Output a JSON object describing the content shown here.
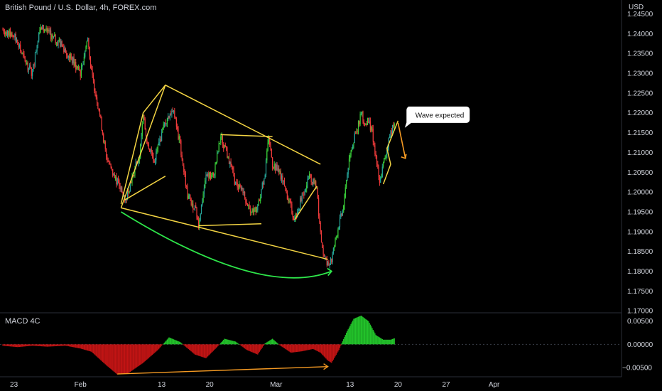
{
  "header": {
    "title": "British Pound / U.S. Dollar, 4h, FOREX.com",
    "currency": "USD",
    "indicator": "MACD 4C"
  },
  "colors": {
    "up": "#26a69a",
    "up_bright": "#3ad13a",
    "down": "#ef3b3b",
    "pattern": "#f3d443",
    "arc": "#2ee64a",
    "arrow": "#f59a23",
    "macd_pos": "#23c42b",
    "macd_neg": "#c31414"
  },
  "chart_data": [
    {
      "type": "candlestick",
      "title": "British Pound / U.S. Dollar, 4h, FOREX.com",
      "ylabel": "USD",
      "ylim": [
        1.1695,
        1.2485
      ],
      "y_ticks": [
        "1.24500",
        "1.24000",
        "1.23500",
        "1.23000",
        "1.22500",
        "1.22000",
        "1.21500",
        "1.21000",
        "1.20500",
        "1.20000",
        "1.19500",
        "1.19000",
        "1.18500",
        "1.18000",
        "1.17500",
        "1.17000"
      ],
      "x_ticks": [
        "23",
        "Feb",
        "13",
        "20",
        "Mar",
        "13",
        "20",
        "27",
        "Apr"
      ],
      "x_tick_index": [
        3,
        21,
        43,
        56,
        74,
        94,
        107,
        120,
        133
      ],
      "close_path": [
        [
          0,
          1.241
        ],
        [
          3,
          1.2395
        ],
        [
          6,
          1.233
        ],
        [
          8,
          1.23
        ],
        [
          10,
          1.242
        ],
        [
          13,
          1.2395
        ],
        [
          16,
          1.237
        ],
        [
          19,
          1.233
        ],
        [
          21,
          1.23
        ],
        [
          23,
          1.239
        ],
        [
          24,
          1.23
        ],
        [
          26,
          1.221
        ],
        [
          28,
          1.209
        ],
        [
          30,
          1.204
        ],
        [
          32,
          1.201
        ],
        [
          33,
          1.197
        ],
        [
          35,
          1.204
        ],
        [
          37,
          1.209
        ],
        [
          38,
          1.219
        ],
        [
          39,
          1.213
        ],
        [
          41,
          1.208
        ],
        [
          44,
          1.218
        ],
        [
          46,
          1.221
        ],
        [
          48,
          1.212
        ],
        [
          50,
          1.199
        ],
        [
          52,
          1.196
        ],
        [
          53,
          1.192
        ],
        [
          55,
          1.204
        ],
        [
          57,
          1.204
        ],
        [
          59,
          1.214
        ],
        [
          61,
          1.209
        ],
        [
          63,
          1.202
        ],
        [
          65,
          1.2
        ],
        [
          67,
          1.195
        ],
        [
          69,
          1.196
        ],
        [
          71,
          1.205
        ],
        [
          72,
          1.214
        ],
        [
          73,
          1.207
        ],
        [
          75,
          1.205
        ],
        [
          77,
          1.199
        ],
        [
          79,
          1.193
        ],
        [
          81,
          1.199
        ],
        [
          83,
          1.204
        ],
        [
          85,
          1.201
        ],
        [
          86,
          1.189
        ],
        [
          87,
          1.183
        ],
        [
          88,
          1.1815
        ],
        [
          89,
          1.183
        ],
        [
          91,
          1.192
        ],
        [
          92,
          1.195
        ],
        [
          93,
          1.203
        ],
        [
          94,
          1.21
        ],
        [
          96,
          1.216
        ],
        [
          97,
          1.22
        ],
        [
          98,
          1.217
        ],
        [
          99,
          1.218
        ],
        [
          100,
          1.215
        ],
        [
          101,
          1.209
        ],
        [
          102,
          1.202
        ],
        [
          103,
          1.207
        ],
        [
          105,
          1.215
        ],
        [
          106,
          1.217
        ]
      ],
      "annotations": {
        "callout": "Wave expected",
        "wedge_upper": [
          [
            32,
            1.196
          ],
          [
            44,
            1.227
          ],
          [
            86,
            1.207
          ]
        ],
        "wedge_lower": [
          [
            32,
            1.196
          ],
          [
            88,
            1.183
          ]
        ],
        "inner_lines": [
          [
            [
              32,
              1.197
            ],
            [
              38,
              1.22
            ],
            [
              44,
              1.227
            ]
          ],
          [
            [
              33,
              1.198
            ],
            [
              44,
              1.204
            ]
          ],
          [
            [
              53,
              1.1915
            ],
            [
              70,
              1.192
            ]
          ],
          [
            [
              59,
              1.2145
            ],
            [
              73,
              1.214
            ]
          ],
          [
            [
              79,
              1.193
            ],
            [
              85,
              1.2015
            ]
          ],
          [
            [
              103,
              1.202
            ],
            [
              105,
              1.207
            ],
            [
              104,
              1.211
            ],
            [
              107,
              1.218
            ]
          ]
        ],
        "arc": [
          [
            32,
            1.195
          ],
          [
            70,
            1.177
          ],
          [
            89,
            1.18
          ]
        ],
        "projection": [
          [
            107,
            1.2175
          ],
          [
            109,
            1.2085
          ]
        ]
      }
    },
    {
      "type": "bar",
      "title": "MACD 4C",
      "ylim": [
        -0.007,
        0.0068
      ],
      "y_ticks": [
        "0.00500",
        "0.00000",
        "−0.00500"
      ],
      "curve": [
        [
          0,
          -0.0003
        ],
        [
          4,
          -0.0006
        ],
        [
          8,
          -0.0003
        ],
        [
          12,
          -0.0005
        ],
        [
          17,
          -0.0003
        ],
        [
          21,
          -0.0009
        ],
        [
          24,
          -0.0016
        ],
        [
          28,
          -0.0045
        ],
        [
          31,
          -0.0065
        ],
        [
          34,
          -0.0062
        ],
        [
          38,
          -0.004
        ],
        [
          42,
          -0.0012
        ],
        [
          45,
          0.0015
        ],
        [
          48,
          0.0005
        ],
        [
          52,
          -0.0022
        ],
        [
          55,
          -0.003
        ],
        [
          58,
          -0.0006
        ],
        [
          60,
          0.0012
        ],
        [
          63,
          0.0006
        ],
        [
          66,
          -0.0012
        ],
        [
          69,
          -0.0022
        ],
        [
          71,
          0.0002
        ],
        [
          73,
          0.0012
        ],
        [
          75,
          -0.0002
        ],
        [
          78,
          -0.0018
        ],
        [
          81,
          -0.0015
        ],
        [
          84,
          -0.001
        ],
        [
          86,
          -0.0018
        ],
        [
          88,
          -0.0035
        ],
        [
          89,
          -0.004
        ],
        [
          91,
          -0.0012
        ],
        [
          93,
          0.0025
        ],
        [
          95,
          0.0055
        ],
        [
          97,
          0.0062
        ],
        [
          99,
          0.005
        ],
        [
          101,
          0.002
        ],
        [
          103,
          0.001
        ],
        [
          105,
          0.001
        ],
        [
          106,
          0.0013
        ]
      ],
      "annotations": {
        "divergence": [
          [
            31,
            -0.0064
          ],
          [
            88,
            -0.0048
          ]
        ]
      }
    }
  ]
}
